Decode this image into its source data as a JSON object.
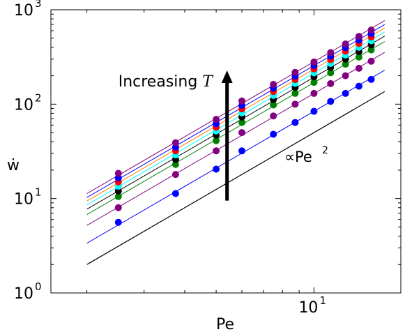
{
  "chart_data": {
    "type": "scatter",
    "title": "",
    "xlabel": "Pe",
    "ylabel": "ẇ",
    "xscale": "log",
    "yscale": "log",
    "xlim": [
      1.55,
      18.5
    ],
    "ylim": [
      1,
      1000
    ],
    "grid": false,
    "x_ticks": [
      {
        "value": 10,
        "base": "10",
        "exp": "1"
      }
    ],
    "y_ticks": [
      {
        "value": 1,
        "base": "10",
        "exp": "0"
      },
      {
        "value": 10,
        "base": "10",
        "exp": "1"
      },
      {
        "value": 100,
        "base": "10",
        "exp": "2"
      },
      {
        "value": 1000,
        "base": "10",
        "exp": "3"
      }
    ],
    "x": [
      2.5,
      3.75,
      5.0,
      6.0,
      7.5,
      8.75,
      10.0,
      11.25,
      12.5,
      13.75,
      15.0
    ],
    "series": [
      {
        "color": "#0000ff",
        "line_color": "#0000ff",
        "values": [
          5.6,
          11.3,
          20.5,
          32,
          48,
          64,
          84,
          107,
          130,
          155,
          183
        ]
      },
      {
        "color": "#800080",
        "line_color": "#800080",
        "values": [
          8.0,
          18,
          32,
          50,
          75,
          100,
          130,
          165,
          200,
          240,
          285
        ]
      },
      {
        "color": "#008000",
        "line_color": "#008000",
        "values": [
          10.5,
          23,
          41,
          64,
          98,
          130,
          170,
          215,
          265,
          315,
          375
        ]
      },
      {
        "color": "#000000",
        "line_color": "#000000",
        "values": [
          12.0,
          26,
          47,
          73,
          112,
          150,
          195,
          245,
          300,
          360,
          425
        ]
      },
      {
        "color": "#00ffff",
        "line_color": "#00ffff",
        "values": [
          13.5,
          29,
          52,
          81,
          124,
          166,
          215,
          270,
          332,
          400,
          470
        ]
      },
      {
        "color": "#ff0000",
        "line_color": "#ff8000",
        "values": [
          15.0,
          32,
          57,
          89,
          136,
          182,
          236,
          296,
          365,
          440,
          515
        ]
      },
      {
        "color": "#0000ff",
        "line_color": "#0000ff",
        "values": [
          16.5,
          35,
          62,
          97,
          148,
          198,
          256,
          322,
          397,
          478,
          560
        ]
      },
      {
        "color": "#800080",
        "line_color": "#800080",
        "values": [
          18.5,
          39,
          69,
          108,
          162,
          217,
          280,
          352,
          434,
          522,
          610
        ]
      }
    ],
    "reference_line": {
      "label": "∝Pe",
      "label_exp": "2",
      "x": [
        2.0,
        16.5
      ],
      "y": [
        2.0,
        136
      ],
      "color": "#000000"
    },
    "annotations": [
      {
        "text": "Increasing ",
        "symbol": "T"
      }
    ],
    "arrow": {
      "x": 5.4,
      "y_from": 9.5,
      "y_to": 220,
      "color": "#000000"
    }
  }
}
